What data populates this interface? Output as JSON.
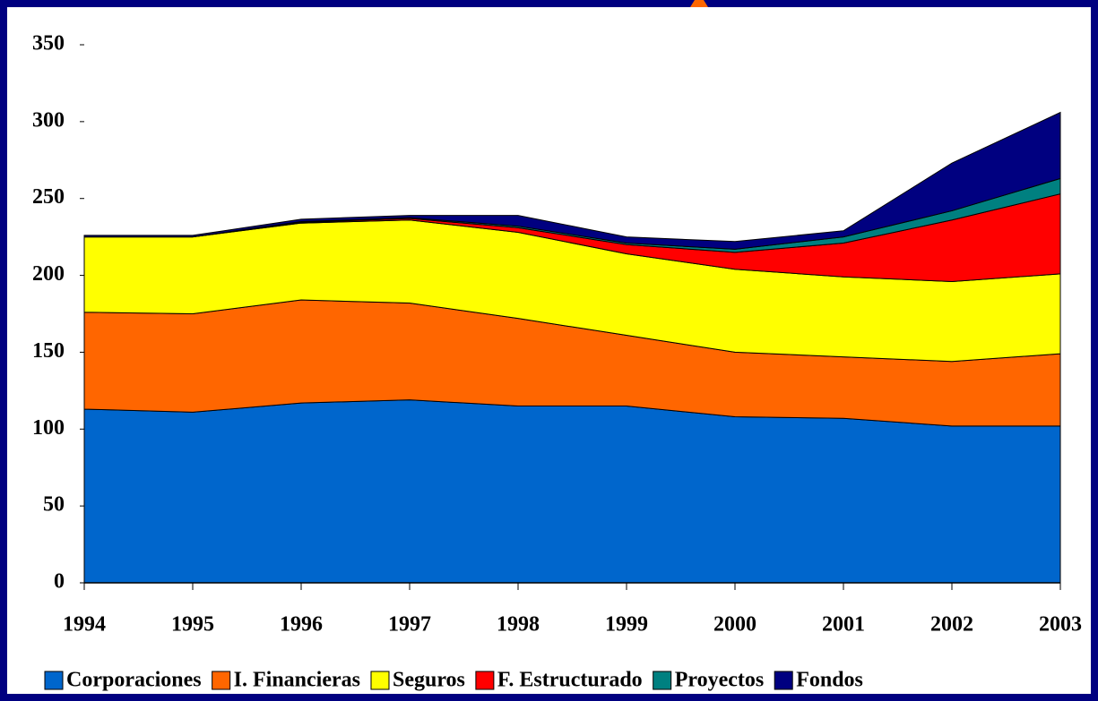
{
  "chart_data": {
    "type": "stacked_area",
    "categories": [
      "1994",
      "1995",
      "1996",
      "1997",
      "1998",
      "1999",
      "2000",
      "2001",
      "2002",
      "2003"
    ],
    "series": [
      {
        "name": "Corporaciones",
        "color": "#0066cc",
        "values": [
          113,
          111,
          117,
          119,
          115,
          115,
          108,
          107,
          102,
          102
        ]
      },
      {
        "name": "I. Financieras",
        "color": "#ff6600",
        "values": [
          63,
          64,
          67,
          63,
          57,
          46,
          42,
          40,
          42,
          47
        ]
      },
      {
        "name": "Seguros",
        "color": "#ffff00",
        "values": [
          49,
          50,
          50,
          54,
          56,
          53,
          54,
          52,
          52,
          52
        ]
      },
      {
        "name": "F. Estructurado",
        "color": "#ff0000",
        "values": [
          0,
          0,
          0.5,
          1,
          3,
          6,
          11,
          22,
          40,
          52
        ]
      },
      {
        "name": "Proyectos",
        "color": "#008080",
        "values": [
          0,
          0,
          0.5,
          0.5,
          1,
          1,
          2,
          4,
          6,
          10
        ]
      },
      {
        "name": "Fondos",
        "color": "#000080",
        "values": [
          1,
          1,
          1.5,
          1.5,
          7,
          4,
          5,
          4,
          31,
          43
        ]
      }
    ],
    "ylim": [
      0,
      350
    ],
    "yticks": [
      0,
      50,
      100,
      150,
      200,
      250,
      300,
      350
    ],
    "legend": "bottom"
  }
}
